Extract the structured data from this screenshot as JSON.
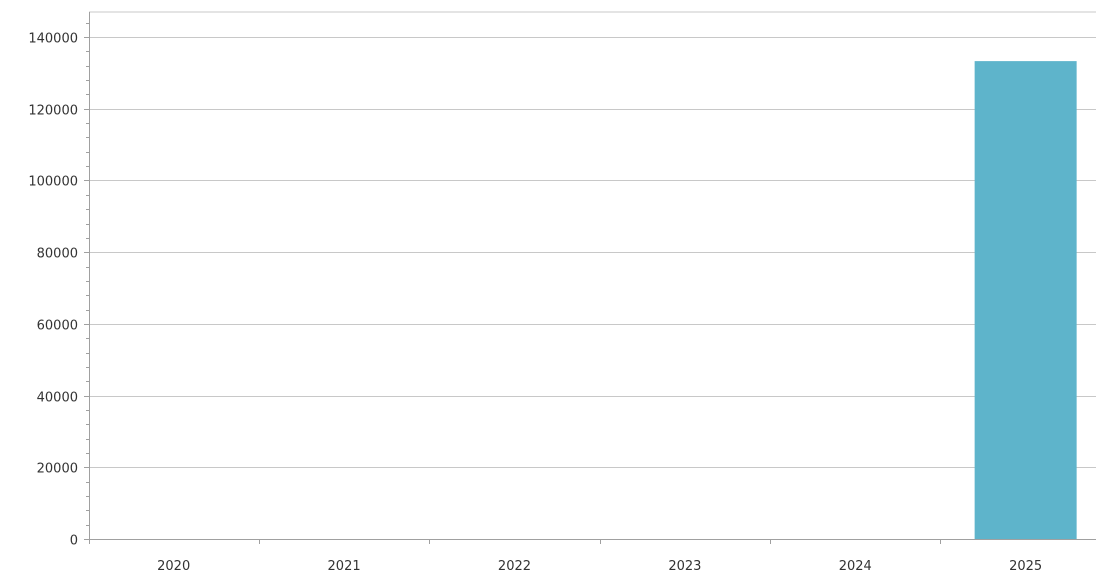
{
  "chart_data": {
    "type": "bar",
    "title": "",
    "xlabel": "",
    "ylabel": "",
    "categories": [
      "2020",
      "2021",
      "2022",
      "2023",
      "2024",
      "2025"
    ],
    "values": [
      0,
      0,
      0,
      0,
      0,
      133300
    ],
    "ylim": [
      0,
      147000
    ],
    "yticks": [
      0,
      20000,
      40000,
      60000,
      80000,
      100000,
      120000,
      140000
    ],
    "ytick_labels": [
      "0",
      "20000",
      "40000",
      "60000",
      "80000",
      "100000",
      "120000",
      "140000"
    ],
    "grid": true,
    "legend": "none",
    "bar_color": "#5eb4cb",
    "grid_color": "#c8c8c8",
    "axis_color": "#a0a0a0"
  }
}
